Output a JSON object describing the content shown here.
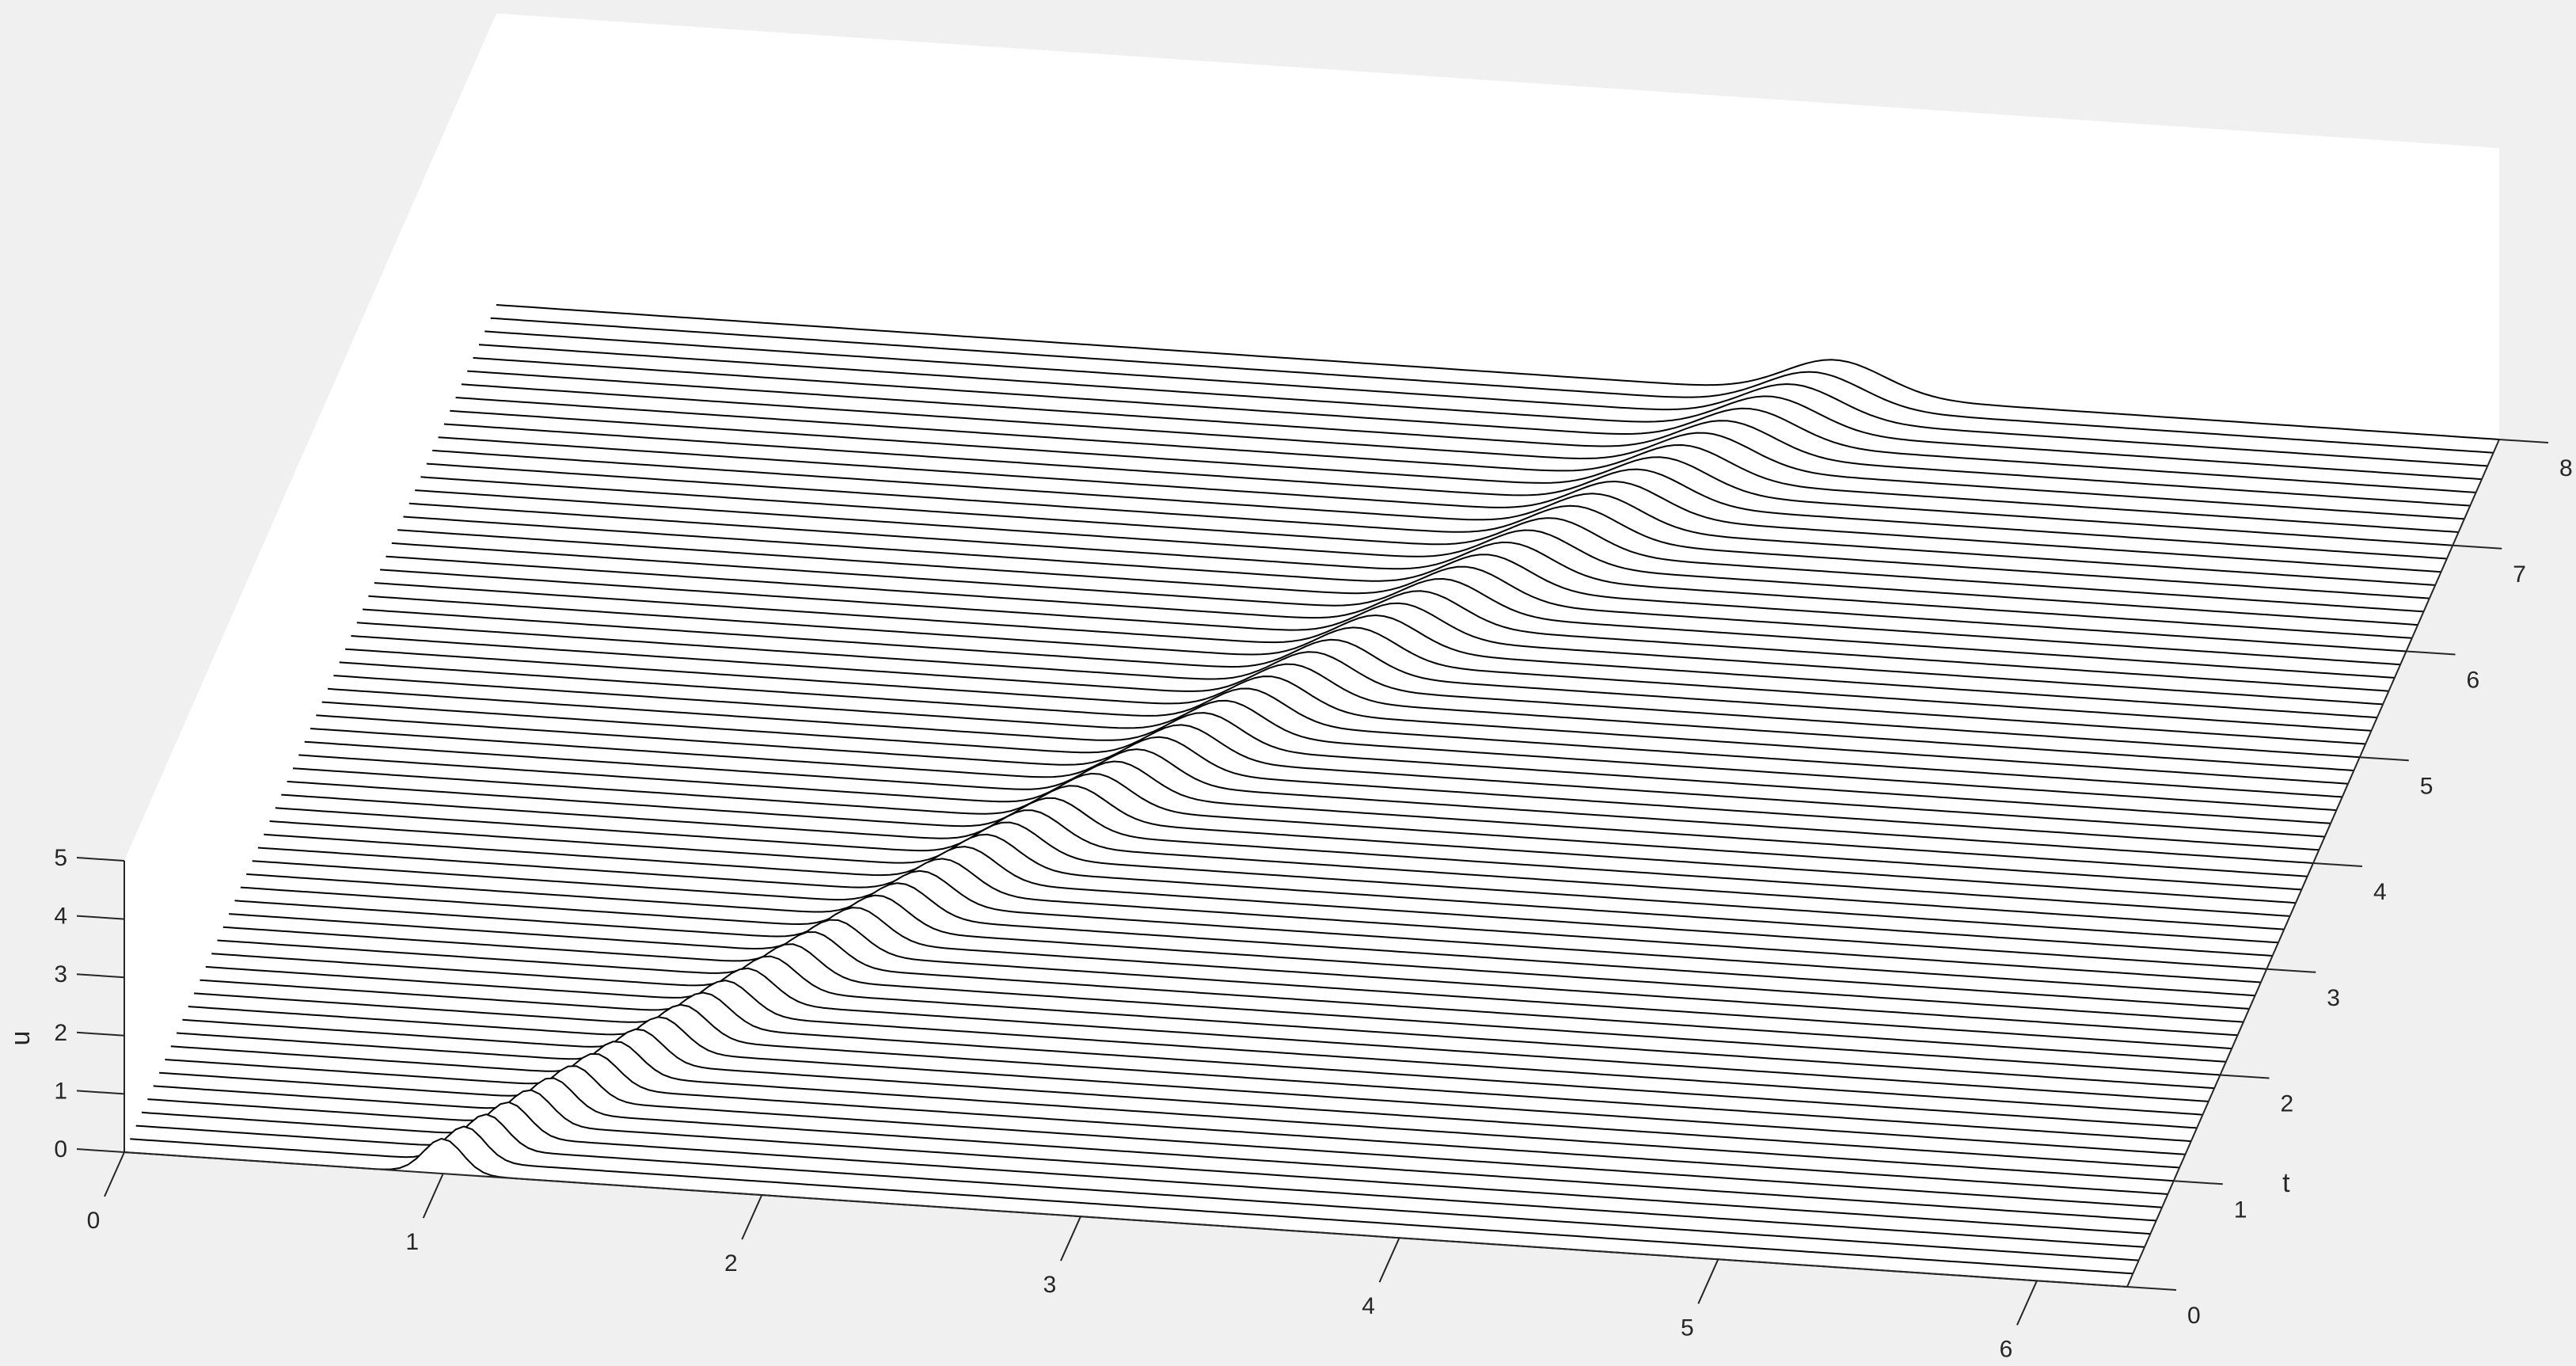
{
  "chart_data": {
    "type": "waterfall",
    "title": "",
    "xlabel": "",
    "ylabel": "t",
    "zlabel": "u",
    "xlim": [
      0,
      6.2832
    ],
    "ylim": [
      0,
      8
    ],
    "zlim": [
      0,
      5
    ],
    "x_ticks": [
      0,
      1,
      2,
      3,
      4,
      5,
      6
    ],
    "y_ticks": [
      0,
      1,
      2,
      3,
      4,
      5,
      6,
      7,
      8
    ],
    "z_ticks": [
      0,
      1,
      2,
      3,
      4,
      5
    ],
    "x_tick_labels": [
      "0",
      "1",
      "2",
      "3",
      "4",
      "5",
      "6"
    ],
    "y_tick_labels": [
      "0",
      "1",
      "2",
      "3",
      "4",
      "5",
      "6",
      "7",
      "8"
    ],
    "z_tick_labels": [
      "0",
      "1",
      "2",
      "3",
      "4",
      "5"
    ],
    "grid": false,
    "t_start": 0,
    "t_step": 0.125,
    "t_count": 65,
    "pulse": {
      "amplitude": 0.6,
      "center_at_t0": 1.0,
      "velocity": 0.4,
      "width_at_t0": 0.06,
      "width_growth": 0.012
    },
    "line_color": "#000000",
    "background_color": "#f0f0f0",
    "axes_color": "#ffffff"
  }
}
